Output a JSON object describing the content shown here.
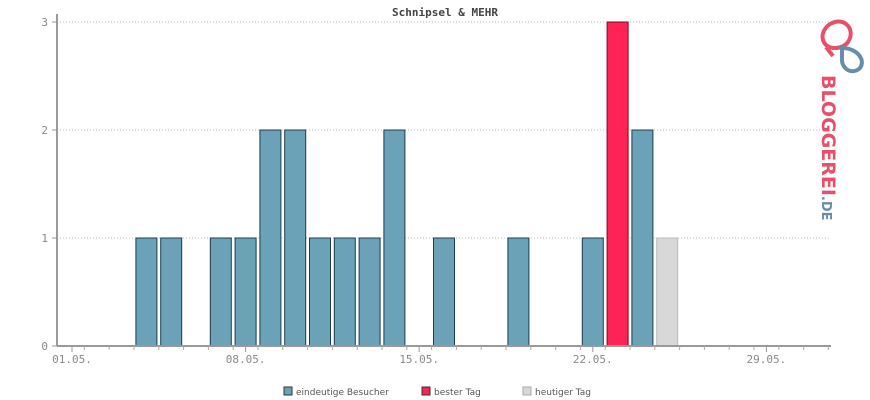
{
  "chart_data": {
    "type": "bar",
    "title": "Schnipsel & MEHR",
    "xlabel": "",
    "ylabel": "",
    "ylim": [
      0,
      3
    ],
    "yticks": [
      "0",
      "1",
      "2",
      "3"
    ],
    "xticks": [
      {
        "day": 1,
        "label": "01.05."
      },
      {
        "day": 8,
        "label": "08.05."
      },
      {
        "day": 15,
        "label": "15.05."
      },
      {
        "day": 22,
        "label": "22.05."
      },
      {
        "day": 29,
        "label": "29.05."
      }
    ],
    "days": [
      1,
      2,
      3,
      4,
      5,
      6,
      7,
      8,
      9,
      10,
      11,
      12,
      13,
      14,
      15,
      16,
      17,
      18,
      19,
      20,
      21,
      22,
      23,
      24,
      25,
      26,
      27,
      28,
      29,
      30,
      31
    ],
    "values": [
      0,
      0,
      0,
      1,
      1,
      0,
      1,
      1,
      2,
      2,
      1,
      1,
      1,
      2,
      0,
      1,
      0,
      0,
      1,
      0,
      0,
      1,
      3,
      2,
      1,
      0,
      0,
      0,
      0,
      0,
      0
    ],
    "best_day": 23,
    "today": 25,
    "grid": true,
    "legend_position": "bottom",
    "legend": [
      {
        "key": "visitors",
        "label": "eindeutige Besucher",
        "color": "#6ca2b8"
      },
      {
        "key": "best",
        "label": "bester Tag",
        "color": "#ff2255"
      },
      {
        "key": "today",
        "label": "heutiger Tag",
        "color": "#d8d8d8"
      }
    ]
  },
  "logo": {
    "text": "BLOGGEREI.DE",
    "colors": {
      "red": "#e8506a",
      "blue": "#6a8caa",
      "gray": "#b0b0b0"
    }
  }
}
